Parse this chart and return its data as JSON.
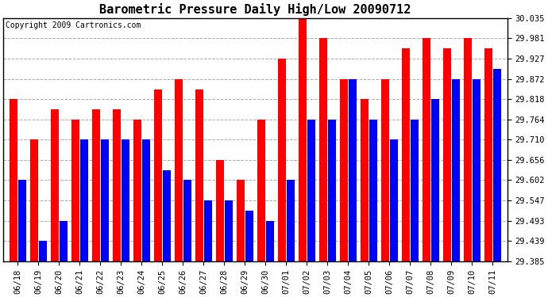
{
  "title": "Barometric Pressure Daily High/Low 20090712",
  "copyright": "Copyright 2009 Cartronics.com",
  "dates": [
    "06/18",
    "06/19",
    "06/20",
    "06/21",
    "06/22",
    "06/23",
    "06/24",
    "06/25",
    "06/26",
    "06/27",
    "06/28",
    "06/29",
    "06/30",
    "07/01",
    "07/02",
    "07/03",
    "07/04",
    "07/05",
    "07/06",
    "07/07",
    "07/08",
    "07/09",
    "07/10",
    "07/11"
  ],
  "highs": [
    29.818,
    29.71,
    29.791,
    29.764,
    29.791,
    29.791,
    29.764,
    29.845,
    29.872,
    29.845,
    29.656,
    29.602,
    29.764,
    29.927,
    30.035,
    29.981,
    29.872,
    29.818,
    29.872,
    29.954,
    29.981,
    29.954,
    29.981,
    29.954
  ],
  "lows": [
    29.602,
    29.439,
    29.493,
    29.71,
    29.71,
    29.71,
    29.71,
    29.629,
    29.602,
    29.547,
    29.547,
    29.52,
    29.493,
    29.602,
    29.764,
    29.764,
    29.872,
    29.764,
    29.71,
    29.764,
    29.818,
    29.872,
    29.872,
    29.899
  ],
  "high_color": "#ff0000",
  "low_color": "#0000ff",
  "bg_color": "#ffffff",
  "grid_color": "#aaaaaa",
  "ymin": 29.385,
  "ymax": 30.035,
  "yticks": [
    29.385,
    29.439,
    29.493,
    29.547,
    29.602,
    29.656,
    29.71,
    29.764,
    29.818,
    29.872,
    29.927,
    29.981,
    30.035
  ],
  "title_fontsize": 11,
  "copyright_fontsize": 7,
  "tick_fontsize": 7.5
}
